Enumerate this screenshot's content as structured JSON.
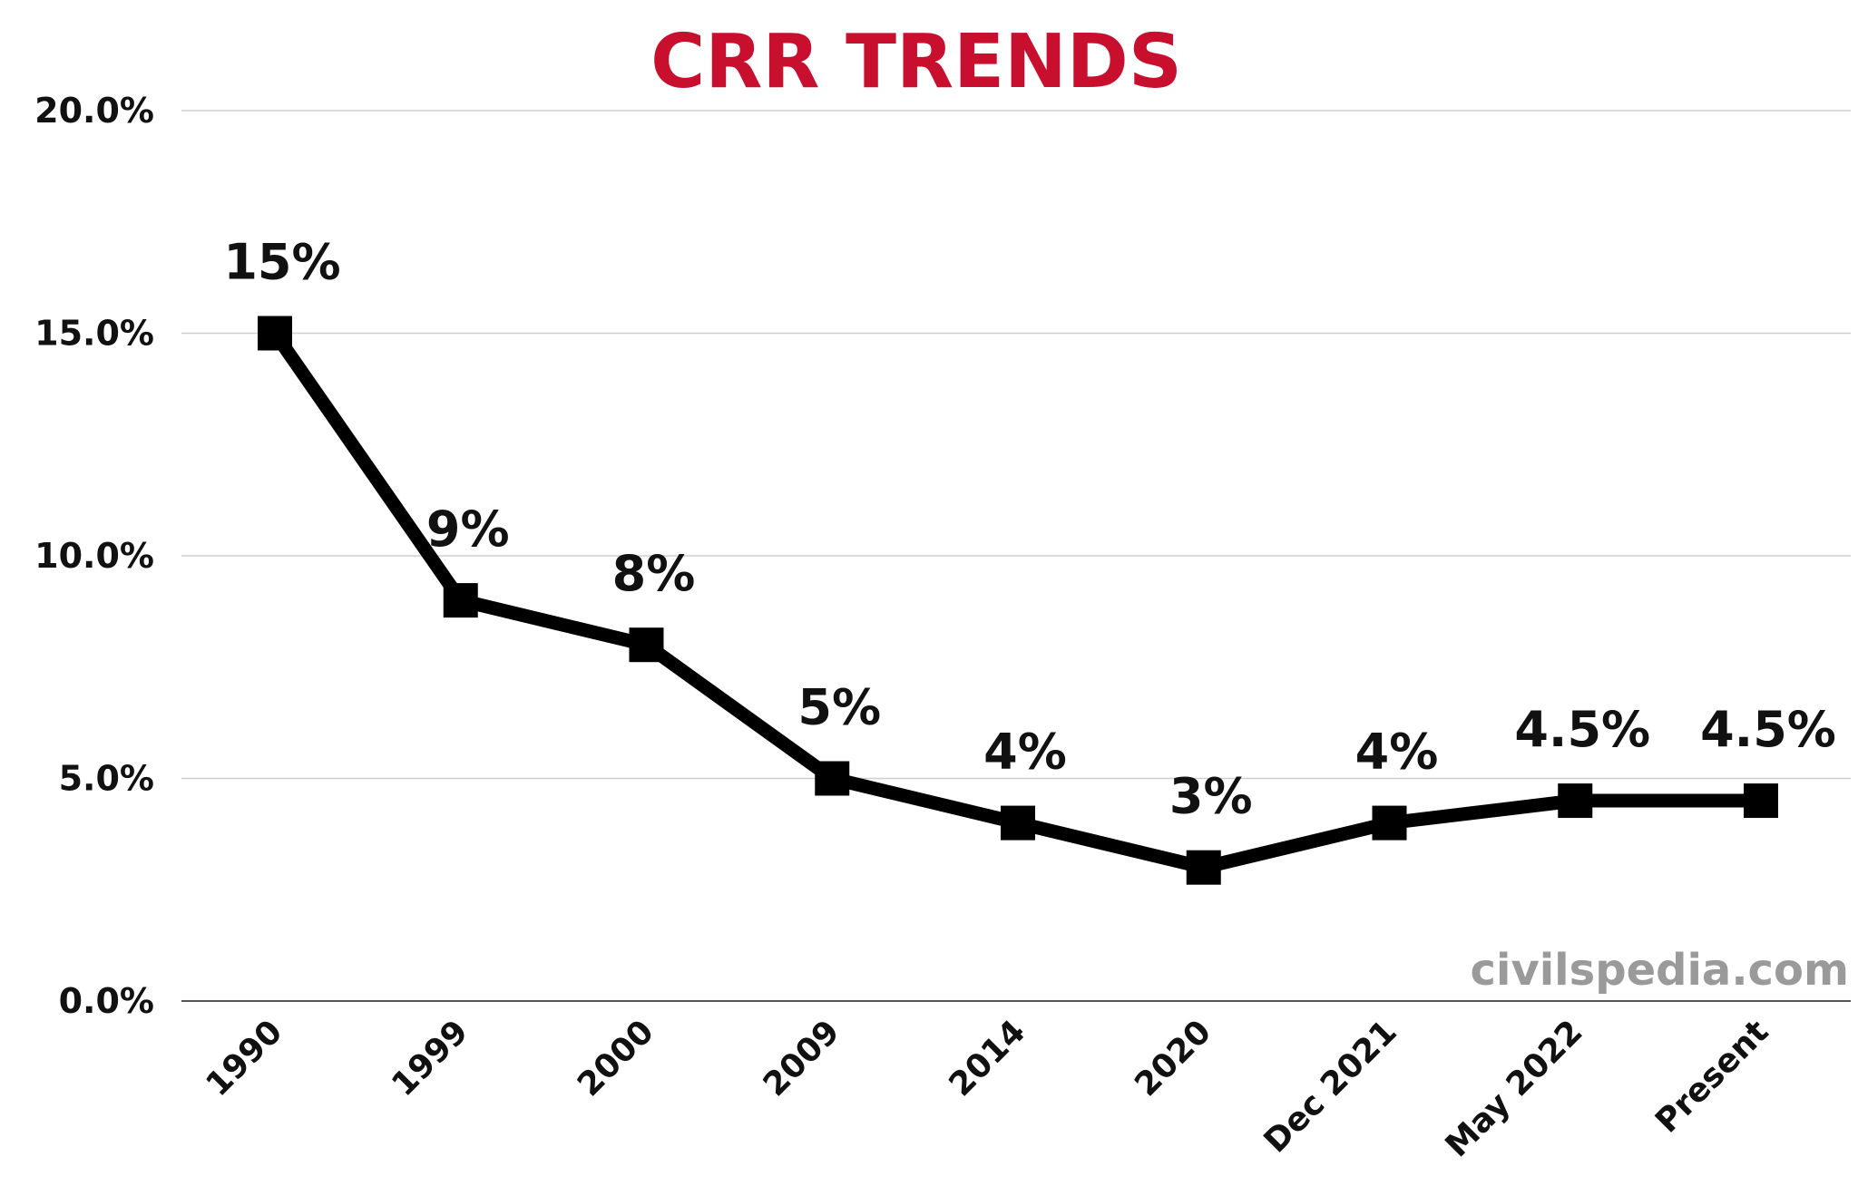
{
  "chart_data": {
    "type": "line",
    "title": "CRR TRENDS",
    "categories": [
      "1990",
      "1999",
      "2000",
      "2009",
      "2014",
      "2020",
      "Dec 2021",
      "May 2022",
      "Present"
    ],
    "series": [
      {
        "values": [
          15,
          9,
          8,
          5,
          4,
          3,
          4,
          4.5,
          4.5
        ],
        "data_labels": [
          "15%",
          "9%",
          "8%",
          "5%",
          "4%",
          "3%",
          "4%",
          "4.5%",
          "4.5%"
        ]
      }
    ],
    "y_ticks": [
      0,
      5,
      10,
      15,
      20
    ],
    "y_tick_labels": [
      "0.0%",
      "5.0%",
      "10.0%",
      "15.0%",
      "20.0%"
    ],
    "ylim": [
      0,
      20
    ],
    "xlabel": "",
    "ylabel": "",
    "grid": true,
    "legend": "none"
  },
  "watermark": "civilspedia.com",
  "colors": {
    "title": "#c8102e",
    "line": "#000000",
    "grid": "#cfcfcf",
    "watermark": "#9a9a9a"
  }
}
